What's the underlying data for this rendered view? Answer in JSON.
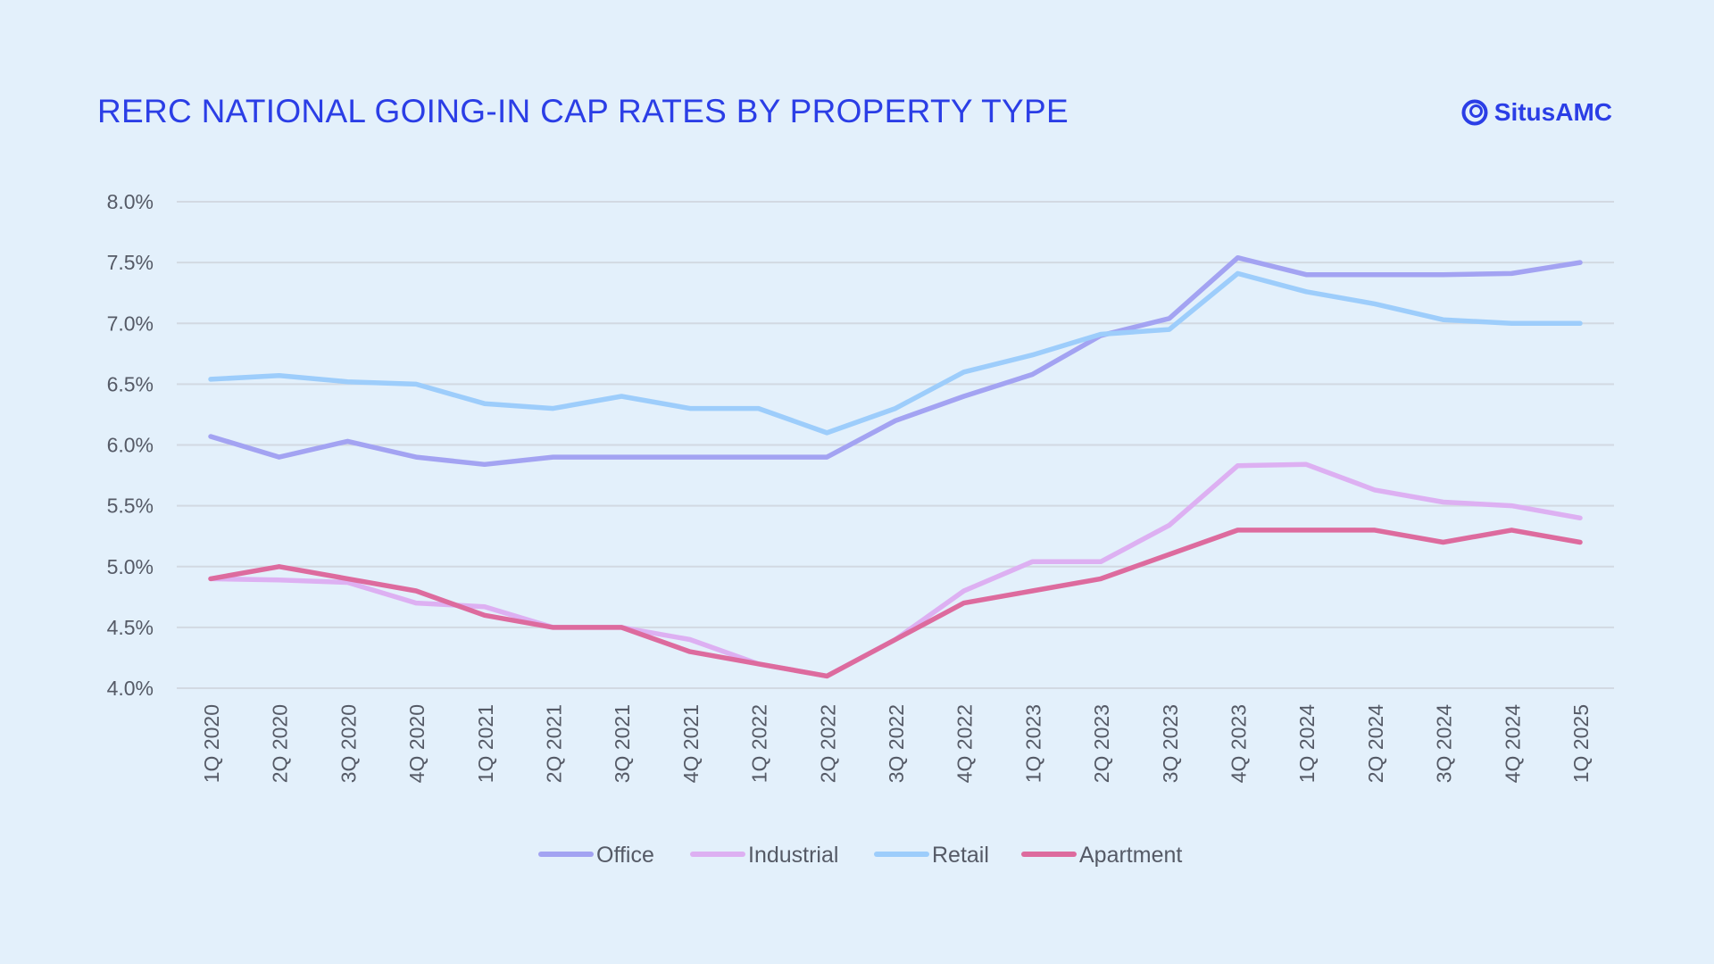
{
  "header": {
    "title": "RERC NATIONAL GOING-IN CAP RATES BY PROPERTY TYPE",
    "logo_text": "SitusAMC"
  },
  "chart_data": {
    "type": "line",
    "title": "RERC NATIONAL GOING-IN CAP RATES BY PROPERTY TYPE",
    "xlabel": "",
    "ylabel": "",
    "ylim": [
      4.0,
      8.0
    ],
    "yticks": [
      4.0,
      4.5,
      5.0,
      5.5,
      6.0,
      6.5,
      7.0,
      7.5,
      8.0
    ],
    "ytick_format": "percent_1dp",
    "grid": true,
    "legend_position": "bottom-center",
    "categories": [
      "1Q 2020",
      "2Q 2020",
      "3Q 2020",
      "4Q 2020",
      "1Q 2021",
      "2Q 2021",
      "3Q 2021",
      "4Q 2021",
      "1Q 2022",
      "2Q 2022",
      "3Q 2022",
      "4Q 2022",
      "1Q 2023",
      "2Q 2023",
      "3Q 2023",
      "4Q 2023",
      "1Q 2024",
      "2Q 2024",
      "3Q 2024",
      "4Q 2024",
      "1Q 2025"
    ],
    "series": [
      {
        "name": "Office",
        "color": "#a3a3f2",
        "values": [
          6.07,
          5.9,
          6.03,
          5.9,
          5.84,
          5.9,
          5.9,
          5.9,
          5.9,
          5.9,
          6.2,
          6.4,
          6.58,
          6.9,
          7.04,
          7.54,
          7.4,
          7.4,
          7.4,
          7.41,
          7.5
        ]
      },
      {
        "name": "Industrial",
        "color": "#ddb0f2",
        "values": [
          4.9,
          4.89,
          4.87,
          4.7,
          4.67,
          4.5,
          4.5,
          4.4,
          4.2,
          4.1,
          4.4,
          4.8,
          5.04,
          5.04,
          5.34,
          5.83,
          5.84,
          5.63,
          5.53,
          5.5,
          5.4
        ]
      },
      {
        "name": "Retail",
        "color": "#9dcdfb",
        "values": [
          6.54,
          6.57,
          6.52,
          6.5,
          6.34,
          6.3,
          6.4,
          6.3,
          6.3,
          6.1,
          6.3,
          6.6,
          6.74,
          6.91,
          6.95,
          7.41,
          7.26,
          7.16,
          7.03,
          7.0,
          7.0
        ]
      },
      {
        "name": "Apartment",
        "color": "#dd6b9e",
        "values": [
          4.9,
          5.0,
          4.9,
          4.8,
          4.6,
          4.5,
          4.5,
          4.3,
          4.2,
          4.1,
          4.4,
          4.7,
          4.8,
          4.9,
          5.1,
          5.3,
          5.3,
          5.3,
          5.2,
          5.3,
          5.2
        ]
      }
    ]
  }
}
